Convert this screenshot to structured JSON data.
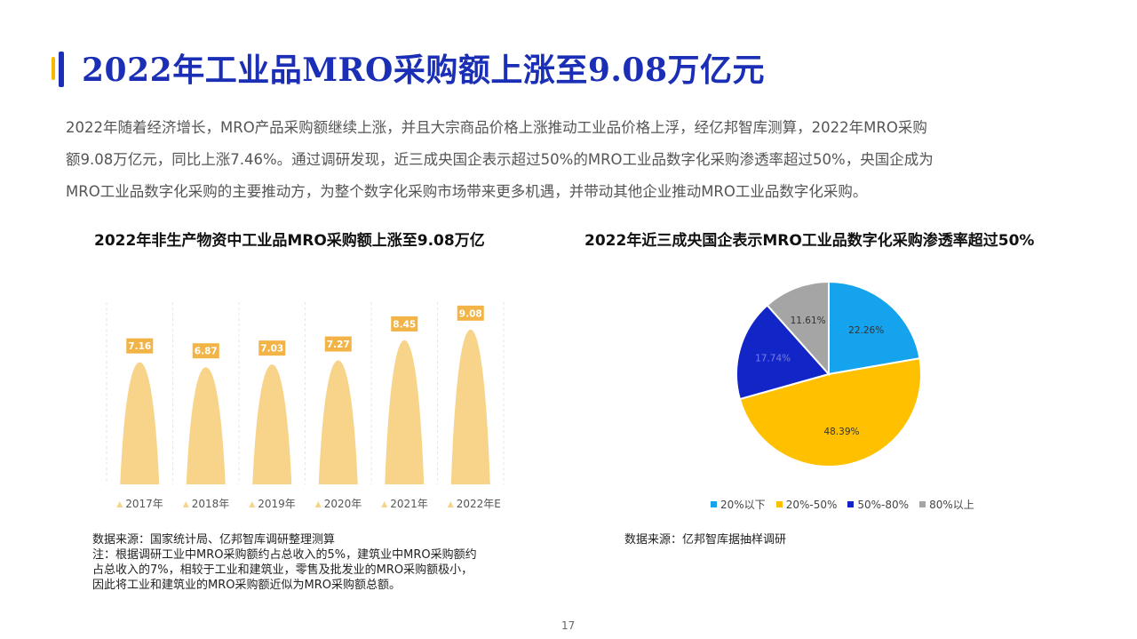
{
  "header": {
    "title": "2022年工业品MRO采购额上涨至9.08万亿元"
  },
  "intro": {
    "line1": "2022年随着经济增长，MRO产品采购额继续上涨，并且大宗商品价格上涨推动工业品价格上浮，经亿邦智库测算，2022年MRO采购",
    "line2": "额9.08万亿元，同比上涨7.46%。通过调研发现，近三成央国企表示超过50%的MRO工业品数字化采购渗透率超过50%，央国企成为",
    "line3": "MRO工业品数字化采购的主要推动方，为整个数字化采购市场带来更多机遇，并带动其他企业推动MRO工业品数字化采购。"
  },
  "left_chart": {
    "title": "2022年非生产物资中工业品MRO采购额上涨至9.08万亿",
    "source": "数据来源：国家统计局、亿邦智库调研整理测算",
    "note_line1": "注：根据调研工业中MRO采购额约占总收入的5%，建筑业中MRO采购额约",
    "note_line2": "占总收入的7%，相较于工业和建筑业，零售及批发业的MRO采购额极小，",
    "note_line3": "因此将工业和建筑业的MRO采购额近似为MRO采购额总额。"
  },
  "right_chart": {
    "title": "2022年近三成央国企表示MRO工业品数字化采购渗透率超过50%",
    "source": "数据来源：亿邦智库据抽样调研"
  },
  "page": {
    "number": "17"
  },
  "colors": {
    "title_blue": "#1a2fb5",
    "accent_yellow": "#f5b800",
    "bar_fill": "#f8d48a",
    "bar_label_bg": "#f2b447",
    "pie_light_blue": "#14a3ec",
    "pie_yellow": "#ffc000",
    "pie_dark_blue": "#1226c8",
    "pie_gray": "#a5a5a5"
  },
  "chart_data": [
    {
      "type": "bar",
      "categories": [
        "2017年",
        "2018年",
        "2019年",
        "2020年",
        "2021年",
        "2022年E"
      ],
      "values": [
        7.16,
        6.87,
        7.03,
        7.27,
        8.45,
        9.08
      ],
      "labels": [
        "7.16",
        "6.87",
        "7.03",
        "7.27",
        "8.45",
        "9.08"
      ],
      "title": "2022年非生产物资中工业品MRO采购额上涨至9.08万亿",
      "xlabel": "",
      "ylabel": "",
      "ylim": [
        0,
        10
      ],
      "grid": false,
      "legend": "bottom"
    },
    {
      "type": "pie",
      "categories": [
        "20%以下",
        "20%-50%",
        "50%-80%",
        "80%以上"
      ],
      "values": [
        22.26,
        48.39,
        17.74,
        11.61
      ],
      "labels": [
        "22.26%",
        "48.39%",
        "17.74%",
        "11.61%"
      ],
      "title": "2022年近三成央国企表示MRO工业品数字化采购渗透率超过50%",
      "legend": "bottom"
    }
  ]
}
